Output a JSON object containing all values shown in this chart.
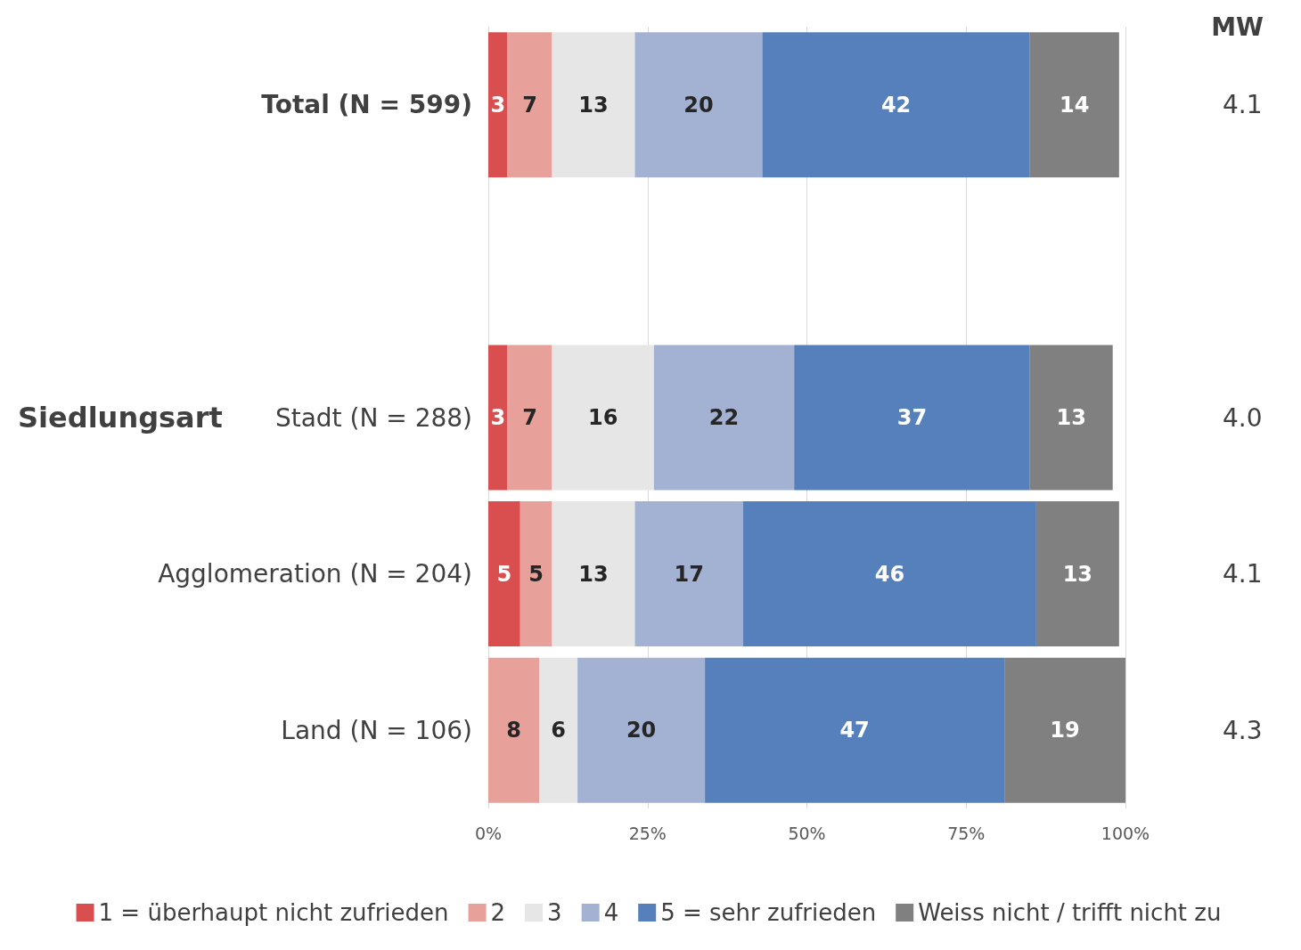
{
  "chart_data": {
    "type": "bar",
    "orientation": "horizontal",
    "stacked": true,
    "data_labels": true,
    "grid": "x",
    "legend": "bottom",
    "ylabel": "Siedlungsart",
    "categories": [
      "Total (N = 599)",
      null,
      "Stadt (N = 288)",
      "Agglomeration (N = 204)",
      "Land (N = 106)"
    ],
    "xlim": [
      0,
      100
    ],
    "xticks": [
      {
        "value": 0,
        "label": "0%"
      },
      {
        "value": 25,
        "label": "25%"
      },
      {
        "value": 50,
        "label": "50%"
      },
      {
        "value": 75,
        "label": "75%"
      },
      {
        "value": 100,
        "label": "100%"
      }
    ],
    "series": [
      {
        "name": "1 = überhaupt nicht zufrieden",
        "color": "#d94f4f",
        "values": [
          3,
          null,
          3,
          5,
          null
        ]
      },
      {
        "name": "2",
        "color": "#e8a09a",
        "values": [
          7,
          null,
          7,
          5,
          8
        ]
      },
      {
        "name": "3",
        "color": "#e6e6e6",
        "values": [
          13,
          null,
          16,
          13,
          6
        ]
      },
      {
        "name": "4",
        "color": "#a3b1d3",
        "values": [
          20,
          null,
          22,
          17,
          20
        ]
      },
      {
        "name": "5 = sehr zufrieden",
        "color": "#5680bb",
        "values": [
          42,
          null,
          37,
          46,
          47
        ]
      },
      {
        "name": "Weiss nicht / trifft nicht zu",
        "color": "#808080",
        "values": [
          14,
          null,
          13,
          13,
          19
        ]
      }
    ],
    "annotations": [
      "MW",
      "4.1",
      "4.0",
      "4.1",
      "4.3"
    ]
  }
}
